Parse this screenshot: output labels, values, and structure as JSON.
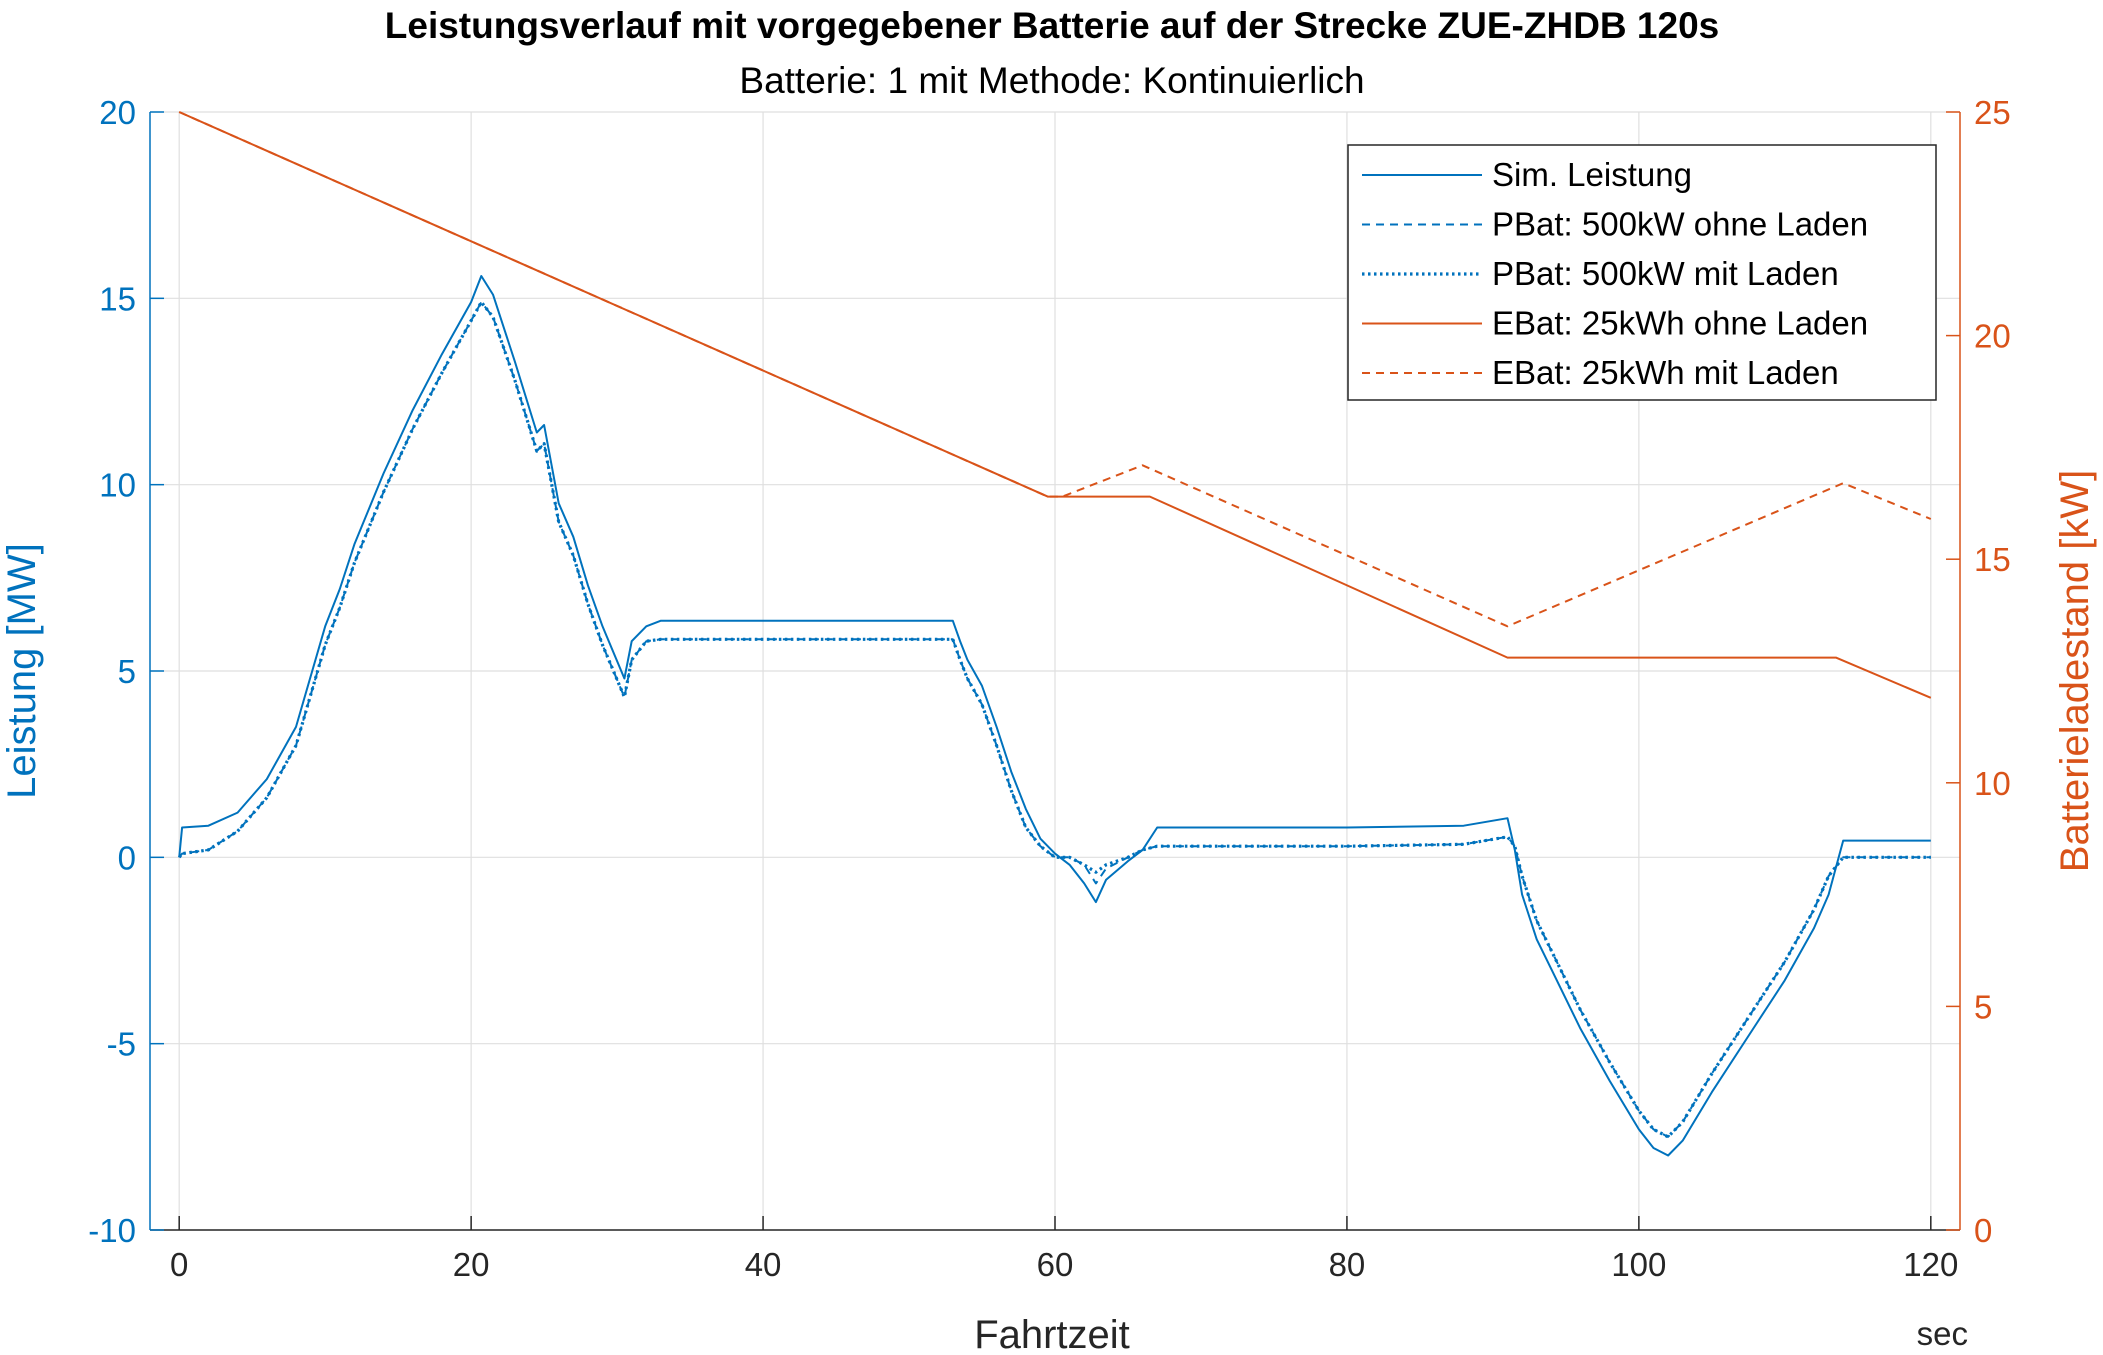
{
  "chart_data": {
    "type": "line",
    "title": "Leistungsverlauf mit vorgegebener Batterie auf der Strecke ZUE-ZHDB 120s",
    "subtitle": "Batterie: 1 mit Methode: Kontinuierlich",
    "xlabel": "Fahrtzeit",
    "xunit": "sec",
    "ylabel_left": "Leistung [MW]",
    "ylabel_right": "Batterieladestand [kW]",
    "xlim": [
      -2,
      122
    ],
    "ylim_left": [
      -10,
      20
    ],
    "ylim_right": [
      0,
      25
    ],
    "xticks": [
      0,
      20,
      40,
      60,
      80,
      100,
      120
    ],
    "yticks_left": [
      -10,
      -5,
      0,
      5,
      10,
      15,
      20
    ],
    "yticks_right": [
      0,
      5,
      10,
      15,
      20,
      25
    ],
    "grid": true,
    "legend_position": "top-right",
    "colors": {
      "left_axis": "#0072BD",
      "right_axis": "#D95319",
      "grid": "#DFDFDF"
    },
    "series": [
      {
        "name": "Sim. Leistung",
        "axis": "left",
        "color": "#0072BD",
        "style": "solid",
        "x": [
          0,
          0.2,
          2,
          4,
          6,
          8,
          10,
          11,
          12,
          14,
          16,
          18,
          20,
          20.7,
          21.5,
          23,
          24.5,
          25,
          26,
          27,
          28,
          29,
          30.5,
          31,
          32,
          33,
          40,
          50,
          53,
          53.5,
          54,
          55,
          56,
          57,
          58,
          59,
          60,
          61,
          62,
          62.8,
          63.5,
          65,
          66,
          67,
          70,
          80,
          88,
          91,
          91.5,
          92,
          93,
          94,
          96,
          98,
          100,
          101,
          102,
          103,
          105,
          108,
          110,
          112,
          113,
          114,
          120
        ],
        "y": [
          0,
          0.8,
          0.85,
          1.2,
          2.1,
          3.5,
          6.2,
          7.2,
          8.4,
          10.3,
          12.0,
          13.5,
          14.9,
          15.6,
          15.1,
          13.3,
          11.4,
          11.6,
          9.5,
          8.6,
          7.3,
          6.2,
          4.8,
          5.8,
          6.2,
          6.35,
          6.35,
          6.35,
          6.35,
          5.8,
          5.3,
          4.6,
          3.5,
          2.3,
          1.3,
          0.5,
          0.1,
          -0.2,
          -0.7,
          -1.2,
          -0.6,
          -0.1,
          0.2,
          0.8,
          0.8,
          0.8,
          0.85,
          1.05,
          0.2,
          -1.0,
          -2.2,
          -3.0,
          -4.6,
          -6.0,
          -7.3,
          -7.8,
          -8.0,
          -7.6,
          -6.3,
          -4.5,
          -3.3,
          -1.9,
          -1.0,
          0.45,
          0.45
        ]
      },
      {
        "name": "PBat: 500kW ohne Laden",
        "axis": "left",
        "color": "#0072BD",
        "style": "dashed",
        "x": [
          0,
          0.2,
          2,
          4,
          6,
          8,
          10,
          11,
          12,
          14,
          16,
          18,
          20,
          20.7,
          21.5,
          23,
          24.5,
          25,
          26,
          27,
          28,
          29,
          30.5,
          31,
          32,
          33,
          40,
          50,
          53,
          53.5,
          54,
          55,
          56,
          57,
          58,
          59,
          60,
          61,
          62,
          62.8,
          63.5,
          65,
          66,
          67,
          70,
          80,
          88,
          91,
          91.5,
          92,
          93,
          94,
          96,
          98,
          100,
          101,
          102,
          103,
          105,
          108,
          110,
          112,
          113,
          114,
          120
        ],
        "y": [
          0,
          0.1,
          0.2,
          0.7,
          1.6,
          3.0,
          5.7,
          6.7,
          7.9,
          9.8,
          11.5,
          13.0,
          14.4,
          14.9,
          14.5,
          12.8,
          10.9,
          11.1,
          9.0,
          8.1,
          6.8,
          5.7,
          4.3,
          5.3,
          5.8,
          5.85,
          5.85,
          5.85,
          5.85,
          5.3,
          4.8,
          4.1,
          3.0,
          1.8,
          0.8,
          0.3,
          0.0,
          0.0,
          -0.2,
          -0.7,
          -0.3,
          0.0,
          0.2,
          0.3,
          0.3,
          0.3,
          0.35,
          0.55,
          0.3,
          -0.5,
          -1.7,
          -2.5,
          -4.1,
          -5.5,
          -6.8,
          -7.3,
          -7.5,
          -7.1,
          -5.8,
          -4.0,
          -2.8,
          -1.4,
          -0.5,
          0.0,
          0.0
        ]
      },
      {
        "name": "PBat: 500kW mit Laden",
        "axis": "left",
        "color": "#0072BD",
        "style": "dotted",
        "x": [
          0,
          0.2,
          2,
          4,
          6,
          8,
          10,
          11,
          12,
          14,
          16,
          18,
          20,
          20.7,
          21.5,
          23,
          24.5,
          25,
          26,
          27,
          28,
          29,
          30.5,
          31,
          32,
          33,
          40,
          50,
          53,
          53.5,
          54,
          55,
          56,
          57,
          58,
          59,
          60,
          61,
          62,
          62.8,
          63.5,
          65,
          66,
          67,
          70,
          80,
          88,
          91,
          91.5,
          92,
          93,
          94,
          96,
          98,
          100,
          101,
          102,
          103,
          105,
          108,
          110,
          112,
          113,
          114,
          120
        ],
        "y": [
          0,
          0.1,
          0.2,
          0.7,
          1.6,
          3.0,
          5.7,
          6.7,
          7.9,
          9.8,
          11.5,
          13.0,
          14.4,
          14.9,
          14.5,
          12.8,
          10.9,
          11.1,
          9.0,
          8.1,
          6.8,
          5.7,
          4.3,
          5.3,
          5.8,
          5.85,
          5.85,
          5.85,
          5.85,
          5.3,
          4.8,
          4.1,
          3.0,
          1.8,
          0.8,
          0.3,
          0.0,
          0.0,
          -0.2,
          -0.4,
          -0.2,
          0.0,
          0.2,
          0.3,
          0.3,
          0.3,
          0.35,
          0.55,
          0.3,
          -0.5,
          -1.7,
          -2.5,
          -4.1,
          -5.5,
          -6.8,
          -7.3,
          -7.5,
          -7.1,
          -5.8,
          -4.0,
          -2.8,
          -1.4,
          -0.5,
          0.0,
          0.0
        ]
      },
      {
        "name": "EBat: 25kWh ohne Laden",
        "axis": "right",
        "color": "#D95319",
        "style": "solid",
        "x": [
          0,
          59.5,
          66.5,
          91,
          113.5,
          120
        ],
        "y": [
          25,
          16.4,
          16.4,
          12.8,
          12.8,
          11.9
        ]
      },
      {
        "name": "EBat: 25kWh mit Laden",
        "axis": "right",
        "color": "#D95319",
        "style": "dashed",
        "x": [
          0,
          59.5,
          60.5,
          66,
          91,
          114,
          120
        ],
        "y": [
          25,
          16.4,
          16.4,
          17.1,
          13.5,
          16.7,
          15.9
        ]
      }
    ]
  }
}
